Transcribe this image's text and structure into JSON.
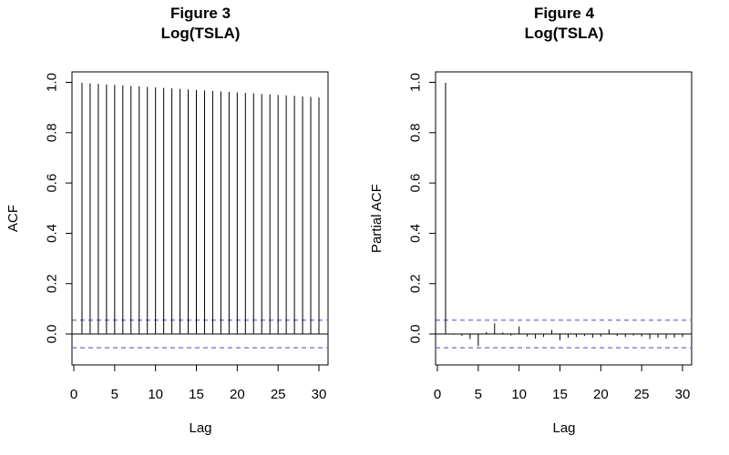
{
  "chart_data": [
    {
      "type": "bar",
      "title": "Figure 3",
      "subtitle": "Log(TSLA)",
      "xlabel": "Lag",
      "ylabel": "ACF",
      "xlim": [
        0,
        30
      ],
      "ylim": [
        -0.1,
        1.0
      ],
      "x_ticks": [
        0,
        5,
        10,
        15,
        20,
        25,
        30
      ],
      "y_ticks": [
        0.0,
        0.2,
        0.4,
        0.6,
        0.8,
        1.0
      ],
      "grid": false,
      "zero_line": true,
      "confidence_band": 0.055,
      "confidence_color": "#7b7bd6",
      "bar_color": "#000000",
      "x": [
        1,
        2,
        3,
        4,
        5,
        6,
        7,
        8,
        9,
        10,
        11,
        12,
        13,
        14,
        15,
        16,
        17,
        18,
        19,
        20,
        21,
        22,
        23,
        24,
        25,
        26,
        27,
        28,
        29,
        30
      ],
      "values": [
        0.998,
        0.996,
        0.994,
        0.992,
        0.99,
        0.988,
        0.986,
        0.984,
        0.982,
        0.98,
        0.978,
        0.976,
        0.974,
        0.972,
        0.97,
        0.968,
        0.966,
        0.964,
        0.962,
        0.96,
        0.958,
        0.956,
        0.954,
        0.952,
        0.95,
        0.948,
        0.946,
        0.944,
        0.942,
        0.94
      ]
    },
    {
      "type": "bar",
      "title": "Figure 4",
      "subtitle": "Log(TSLA)",
      "xlabel": "Lag",
      "ylabel": "Partial ACF",
      "xlim": [
        0,
        30
      ],
      "ylim": [
        -0.1,
        1.0
      ],
      "x_ticks": [
        0,
        5,
        10,
        15,
        20,
        25,
        30
      ],
      "y_ticks": [
        0.0,
        0.2,
        0.4,
        0.6,
        0.8,
        1.0
      ],
      "grid": false,
      "zero_line": true,
      "confidence_band": 0.055,
      "confidence_color": "#7b7bd6",
      "bar_color": "#000000",
      "x": [
        1,
        2,
        3,
        4,
        5,
        6,
        7,
        8,
        9,
        10,
        11,
        12,
        13,
        14,
        15,
        16,
        17,
        18,
        19,
        20,
        21,
        22,
        23,
        24,
        25,
        26,
        27,
        28,
        29,
        30
      ],
      "values": [
        0.998,
        -0.003,
        -0.008,
        -0.02,
        -0.048,
        0.008,
        0.042,
        0.006,
        -0.006,
        0.03,
        -0.01,
        -0.018,
        -0.012,
        0.016,
        -0.025,
        -0.015,
        -0.012,
        -0.008,
        -0.015,
        -0.01,
        0.018,
        -0.008,
        -0.012,
        -0.006,
        -0.01,
        -0.02,
        -0.015,
        -0.018,
        -0.015,
        -0.012
      ]
    }
  ]
}
